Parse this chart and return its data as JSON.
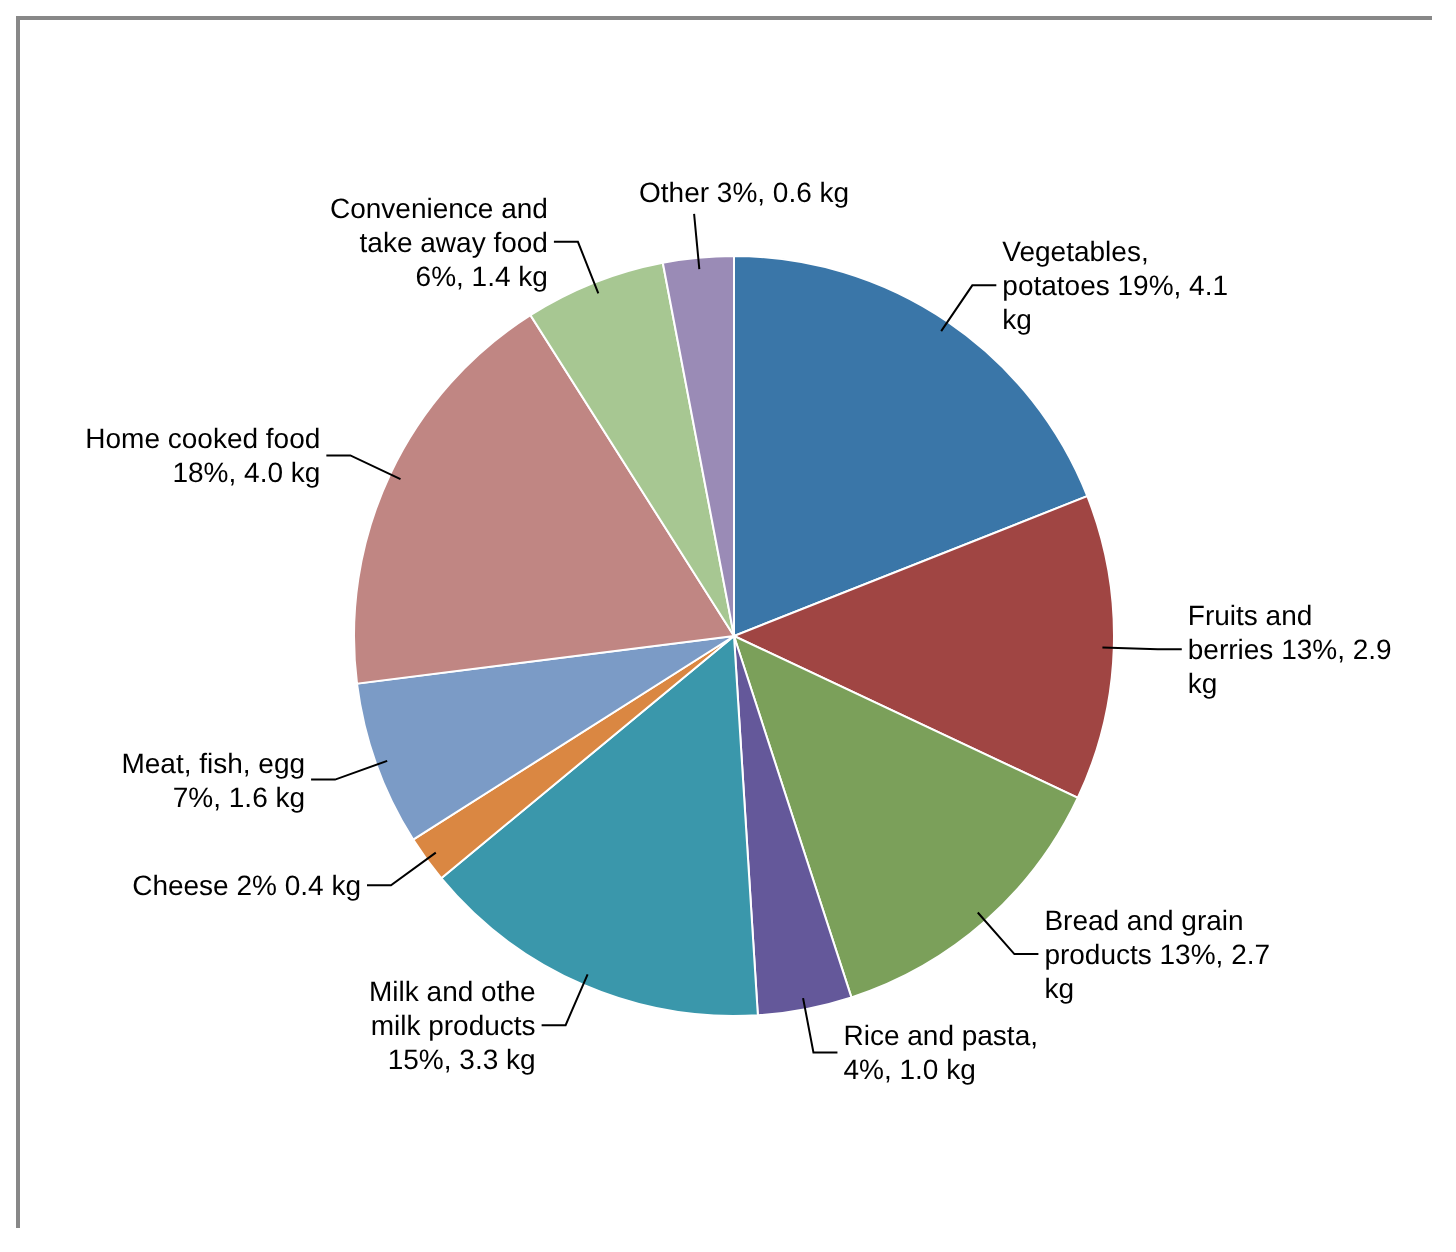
{
  "chart_data": {
    "type": "pie",
    "categories": [
      "Vegetables, potatoes 19%, 4.1 kg",
      "Fruits and berries 13%, 2.9 kg",
      "Bread and grain products 13%, 2.7 kg",
      "Rice and pasta, 4%, 1.0 kg",
      "Milk and othe milk products 15%,  3.3 kg",
      "Cheese 2% 0.4 kg",
      "Meat, fish, egg 7%, 1.6 kg",
      "Home cooked food 18%, 4.0 kg",
      "Convenience and take away food 6%, 1.4 kg",
      "Other 3%, 0.6 kg"
    ],
    "values": [
      19,
      13,
      13,
      4,
      15,
      2,
      7,
      18,
      6,
      3
    ],
    "colors": [
      "#3a76a8",
      "#a04543",
      "#7ba05a",
      "#64589a",
      "#3a97ab",
      "#da8742",
      "#7b9bc6",
      "#c08683",
      "#a7c792",
      "#9a8bb6"
    ],
    "legend": false
  }
}
